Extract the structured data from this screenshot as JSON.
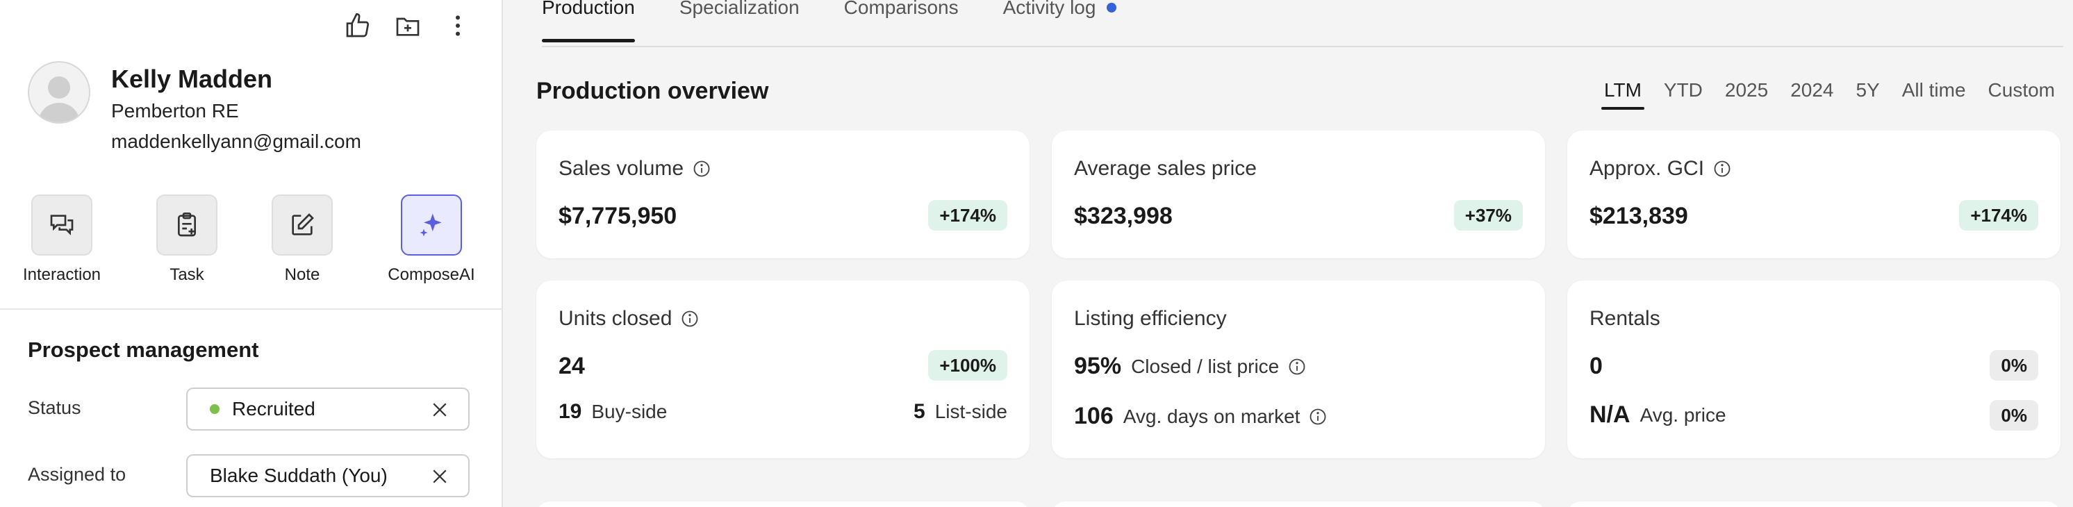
{
  "profile": {
    "name": "Kelly Madden",
    "company": "Pemberton RE",
    "email": "maddenkellyann@gmail.com"
  },
  "quick_actions": [
    {
      "label": "Interaction",
      "icon": "chat-bubbles-icon"
    },
    {
      "label": "Task",
      "icon": "clipboard-add-icon"
    },
    {
      "label": "Note",
      "icon": "edit-note-icon"
    },
    {
      "label": "ComposeAI",
      "icon": "sparkle-icon"
    }
  ],
  "prospect": {
    "title": "Prospect management",
    "status_label": "Status",
    "status_value": "Recruited",
    "assigned_label": "Assigned to",
    "assigned_value": "Blake Suddath (You)"
  },
  "tabs": [
    "Production",
    "Specialization",
    "Comparisons",
    "Activity log"
  ],
  "overview": {
    "title": "Production overview",
    "periods": [
      "LTM",
      "YTD",
      "2025",
      "2024",
      "5Y",
      "All time",
      "Custom"
    ],
    "active_period": "LTM"
  },
  "cards": {
    "sales_volume": {
      "title": "Sales volume",
      "value": "$7,775,950",
      "change": "+174%"
    },
    "avg_price": {
      "title": "Average sales price",
      "value": "$323,998",
      "change": "+37%"
    },
    "gci": {
      "title": "Approx. GCI",
      "value": "$213,839",
      "change": "+174%"
    },
    "units": {
      "title": "Units closed",
      "value": "24",
      "change": "+100%",
      "buy_num": "19",
      "buy_label": "Buy-side",
      "list_num": "5",
      "list_label": "List-side"
    },
    "efficiency": {
      "title": "Listing efficiency",
      "ratio_num": "95%",
      "ratio_label": "Closed / list price",
      "dom_num": "106",
      "dom_label": "Avg. days on market"
    },
    "rentals": {
      "title": "Rentals",
      "value": "0",
      "change": "0%",
      "avg_num": "N/A",
      "avg_label": "Avg. price",
      "avg_change": "0%"
    }
  },
  "colors": {
    "accent": "#5a5ee0",
    "status_dot": "#7cc04b",
    "badge_green": "#e0f3ea",
    "activity_dot": "#3462d8"
  }
}
